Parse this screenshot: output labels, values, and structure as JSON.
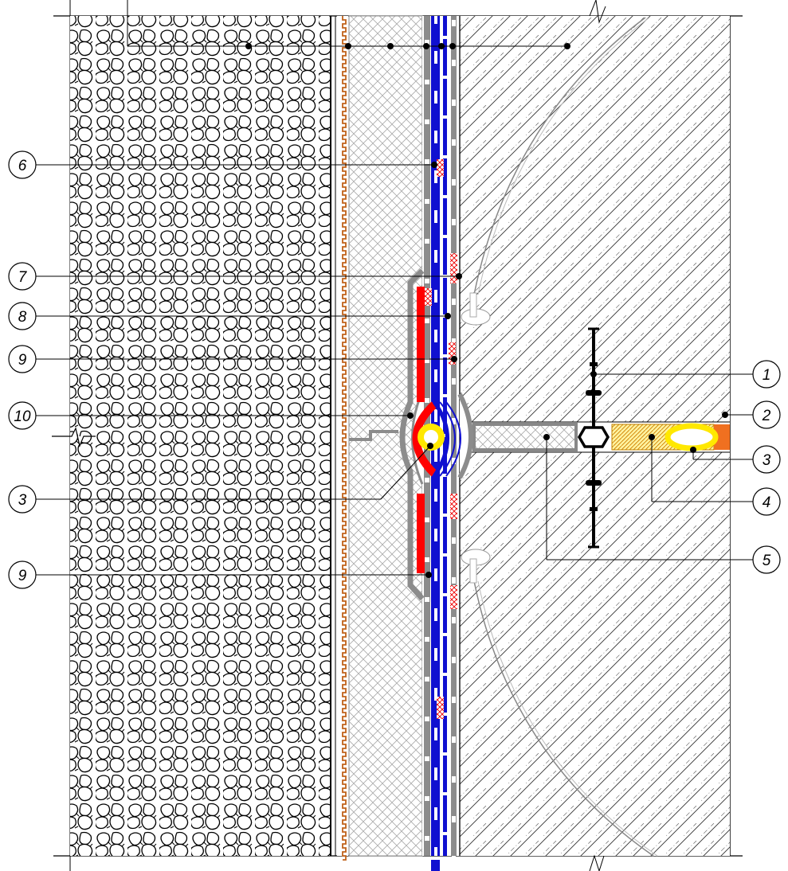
{
  "diagram": {
    "type": "construction-section-detail",
    "description_visible_text": "numbered callouts only",
    "layers": [
      {
        "id": "gravel-fill",
        "color": "#000000"
      },
      {
        "id": "protective-layer",
        "color": "#c0621a"
      },
      {
        "id": "insulation-board",
        "color": "#9a9a9a"
      },
      {
        "id": "membrane-grey",
        "color": "#8c8c8c"
      },
      {
        "id": "membrane-blue",
        "color": "#1010d0"
      },
      {
        "id": "membrane-red",
        "color": "#ff0000"
      },
      {
        "id": "concrete-wall",
        "color": "#000000"
      },
      {
        "id": "waterstop-seal",
        "color": "#ffe800"
      },
      {
        "id": "swelling-tape",
        "color": "#f5a623"
      },
      {
        "id": "joint-filler",
        "color": "#f07020"
      }
    ],
    "callouts": {
      "left": [
        {
          "label": "6"
        },
        {
          "label": "7"
        },
        {
          "label": "8"
        },
        {
          "label": "9"
        },
        {
          "label": "10"
        },
        {
          "label": "3"
        },
        {
          "label": "9"
        }
      ],
      "right": [
        {
          "label": "1"
        },
        {
          "label": "2"
        },
        {
          "label": "3"
        },
        {
          "label": "4"
        },
        {
          "label": "5"
        }
      ]
    }
  }
}
